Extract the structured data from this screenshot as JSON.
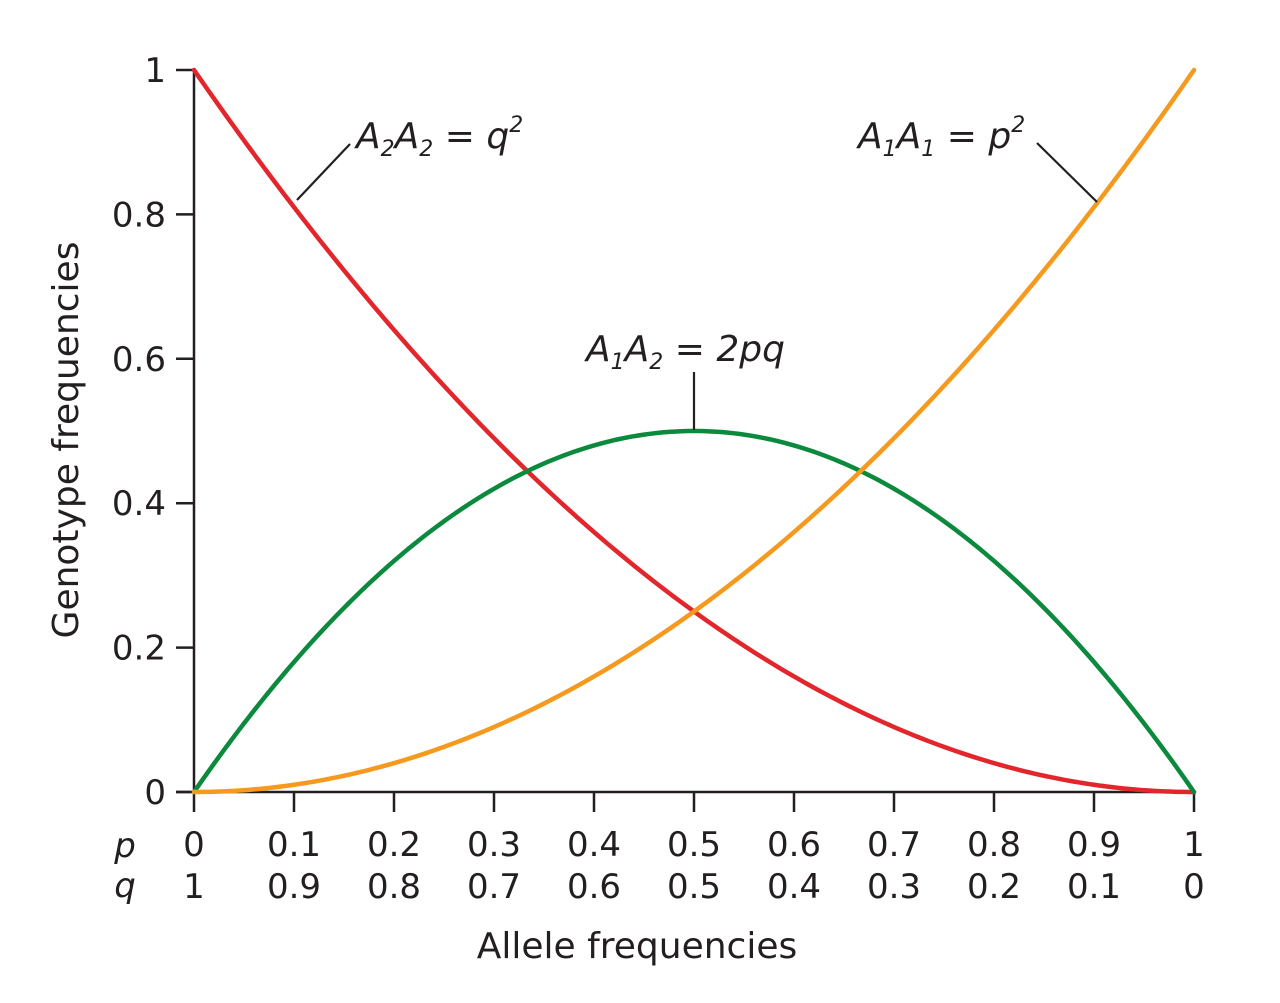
{
  "chart_data": {
    "type": "line",
    "xlabel": "Allele frequencies",
    "ylabel": "Genotype frequencies",
    "xlim": [
      0,
      1
    ],
    "ylim": [
      0,
      1
    ],
    "grid": false,
    "x_ticks": [
      0,
      0.1,
      0.2,
      0.3,
      0.4,
      0.5,
      0.6,
      0.7,
      0.8,
      0.9,
      1
    ],
    "y_ticks": [
      0,
      0.2,
      0.4,
      0.6,
      0.8,
      1
    ],
    "y_tick_labels": [
      "0",
      "0.2",
      "0.4",
      "0.6",
      "0.8",
      "1"
    ],
    "p_row_label": "p",
    "q_row_label": "q",
    "p_tick_labels": [
      "0",
      "0.1",
      "0.2",
      "0.3",
      "0.4",
      "0.5",
      "0.6",
      "0.7",
      "0.8",
      "0.9",
      "1"
    ],
    "q_tick_labels": [
      "1",
      "0.9",
      "0.8",
      "0.7",
      "0.6",
      "0.5",
      "0.4",
      "0.3",
      "0.2",
      "0.1",
      "0"
    ],
    "x": [
      0,
      0.1,
      0.2,
      0.3,
      0.4,
      0.5,
      0.6,
      0.7,
      0.8,
      0.9,
      1
    ],
    "series": [
      {
        "color": "#e3262b",
        "values": [
          1,
          0.81,
          0.64,
          0.49,
          0.36,
          0.25,
          0.16,
          0.09,
          0.04,
          0.01,
          0
        ],
        "label": {
          "a": "A",
          "a_sub": "2",
          "b": "A",
          "b_sub": "2",
          "eq": " = ",
          "v": "q",
          "v_sup": "2"
        }
      },
      {
        "color": "#0b8a3e",
        "values": [
          0,
          0.18,
          0.32,
          0.42,
          0.48,
          0.5,
          0.48,
          0.42,
          0.32,
          0.18,
          0
        ],
        "label": {
          "a": "A",
          "a_sub": "1",
          "b": "A",
          "b_sub": "2",
          "eq": " = 2",
          "v": "pq"
        }
      },
      {
        "color": "#f59a1e",
        "values": [
          0,
          0.01,
          0.04,
          0.09,
          0.16,
          0.25,
          0.36,
          0.49,
          0.64,
          0.81,
          1
        ],
        "label": {
          "a": "A",
          "a_sub": "1",
          "b": "A",
          "b_sub": "1",
          "eq": " =  ",
          "v": "p",
          "v_sup": "2"
        }
      }
    ]
  }
}
